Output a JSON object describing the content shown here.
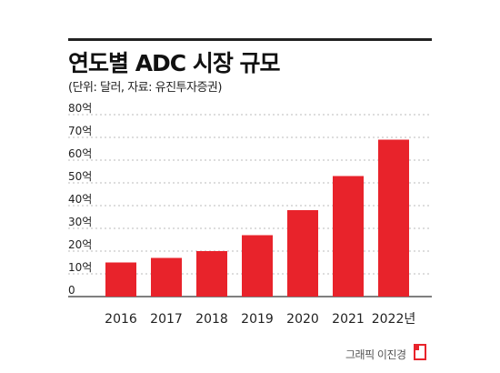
{
  "title": "연도별 ADC 시장 규모",
  "subtitle": "(단위: 달러, 자료: 유진투자증권)",
  "credit": "그래픽 이진경",
  "colors": {
    "bar": "#e8232b",
    "grid": "#bbbbbb",
    "text": "#222222"
  },
  "chart_data": {
    "type": "bar",
    "categories": [
      "2016",
      "2017",
      "2018",
      "2019",
      "2020",
      "2021",
      "2022년"
    ],
    "values": [
      15,
      17,
      20,
      27,
      38,
      53,
      69
    ],
    "ytick_labels": [
      "0",
      "10억",
      "20억",
      "30억",
      "40억",
      "50억",
      "60억",
      "70억",
      "80억"
    ],
    "ytick_values": [
      0,
      10,
      20,
      30,
      40,
      50,
      60,
      70,
      80
    ],
    "ylim": [
      0,
      80
    ],
    "unit_note": "values in 억 달러",
    "grid": "dotted horizontal"
  }
}
